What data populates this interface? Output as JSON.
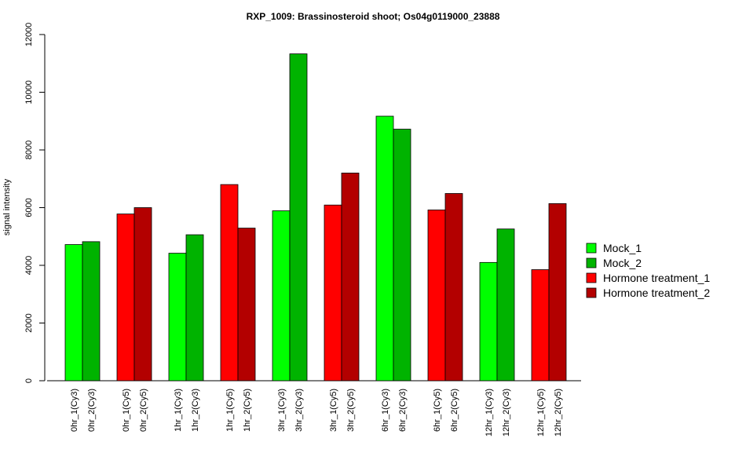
{
  "chart_data": {
    "type": "bar",
    "title": "RXP_1009: Brassinosteroid shoot; Os04g0119000_23888",
    "xlabel": "",
    "ylabel": "signal intensity",
    "ylim": [
      0,
      12000
    ],
    "yticks": [
      0,
      2000,
      4000,
      6000,
      8000,
      10000,
      12000
    ],
    "categories": [
      "0hr_1(Cy3)",
      "0hr_2(Cy3)",
      "0hr_1(Cy5)",
      "0hr_2(Cy5)",
      "1hr_1(Cy3)",
      "1hr_2(Cy3)",
      "1hr_1(Cy5)",
      "1hr_2(Cy5)",
      "3hr_1(Cy3)",
      "3hr_2(Cy3)",
      "3hr_1(Cy5)",
      "3hr_2(Cy5)",
      "6hr_1(Cy3)",
      "6hr_2(Cy3)",
      "6hr_1(Cy5)",
      "6hr_2(Cy5)",
      "12hr_1(Cy3)",
      "12hr_2(Cy3)",
      "12hr_1(Cy5)",
      "12hr_2(Cy5)"
    ],
    "values": [
      4720,
      4820,
      5780,
      6000,
      4420,
      5060,
      6800,
      5290,
      5890,
      11330,
      6090,
      7200,
      9170,
      8720,
      5920,
      6490,
      4100,
      5260,
      3850,
      6140
    ],
    "bar_series": [
      0,
      1,
      2,
      3,
      0,
      1,
      2,
      3,
      0,
      1,
      2,
      3,
      0,
      1,
      2,
      3,
      0,
      1,
      2,
      3
    ],
    "series": [
      {
        "name": "Mock_1",
        "color": "#00ff00"
      },
      {
        "name": "Mock_2",
        "color": "#00b300"
      },
      {
        "name": "Hormone treatment_1",
        "color": "#ff0000"
      },
      {
        "name": "Hormone treatment_2",
        "color": "#b30000"
      }
    ],
    "grid": false,
    "legend_position": "right"
  }
}
